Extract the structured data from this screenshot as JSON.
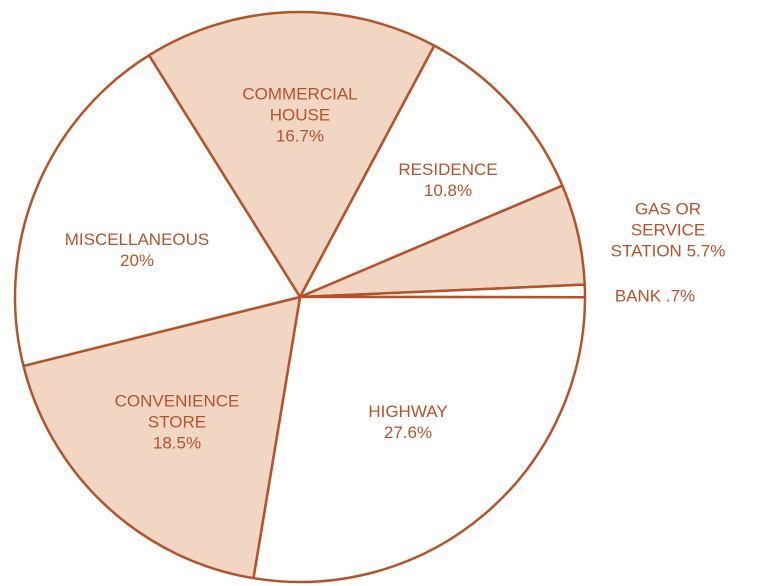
{
  "chart_data": {
    "type": "pie",
    "categories": [
      "COMMERCIAL HOUSE",
      "RESIDENCE",
      "GAS OR SERVICE STATION",
      "BANK",
      "HIGHWAY",
      "CONVENIENCE STORE",
      "MISCELLANEOUS"
    ],
    "values": [
      16.7,
      10.8,
      5.7,
      0.7,
      27.6,
      18.5,
      20
    ],
    "value_labels": [
      "16.7%",
      "10.8%",
      "5.7%",
      ".7%",
      "27.6%",
      "18.5%",
      "20%"
    ],
    "colors": [
      "#f2d6c4",
      "#ffffff",
      "#f2d6c4",
      "#ffffff",
      "#ffffff",
      "#f2d6c4",
      "#ffffff"
    ],
    "stroke": "#b4532a"
  }
}
